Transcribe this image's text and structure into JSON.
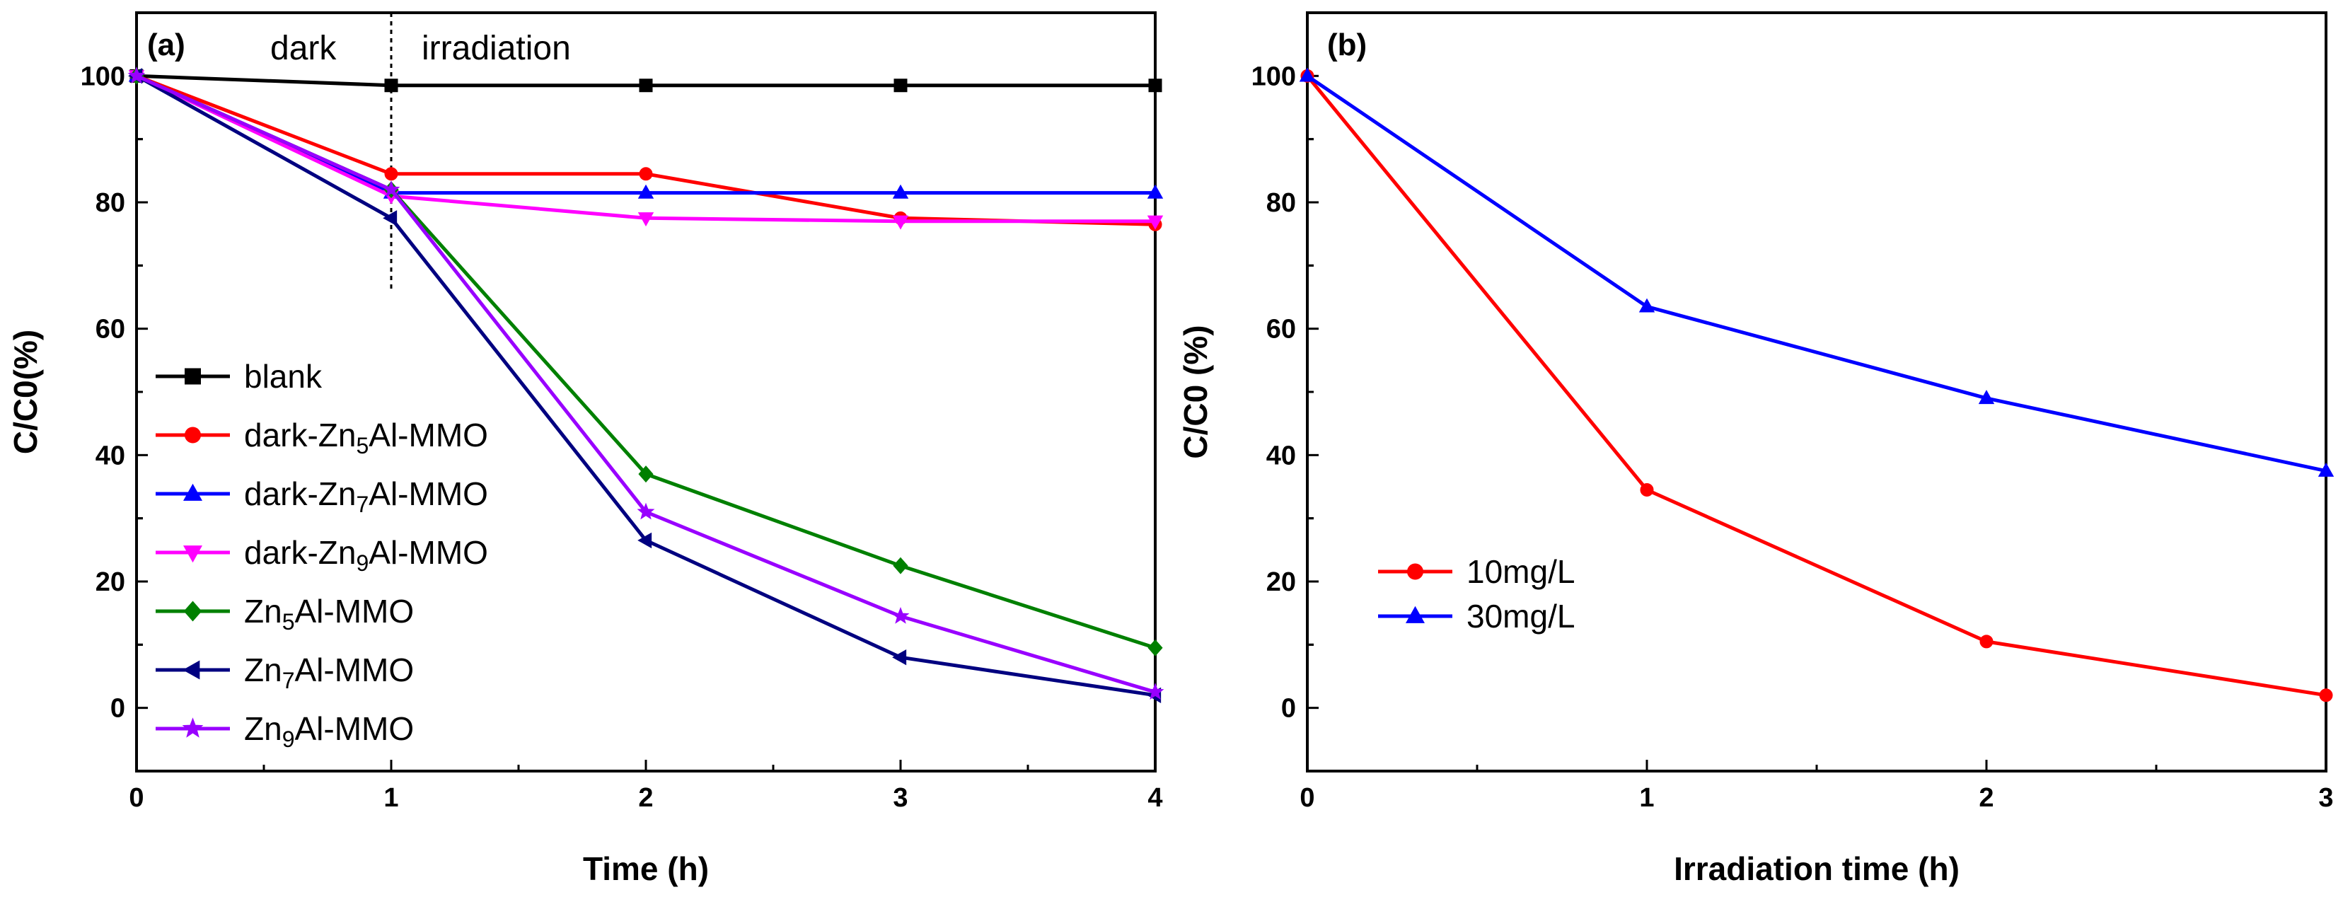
{
  "chart_data": [
    {
      "panel": "(a)",
      "type": "line",
      "xlabel": "Time (h)",
      "ylabel": "C/C0(%)",
      "xlim": [
        0,
        4
      ],
      "ylim": [
        -10,
        110
      ],
      "xticks": [
        0,
        1,
        2,
        3,
        4
      ],
      "xtick_labels": [
        "0",
        "1",
        "2",
        "3",
        "4"
      ],
      "yticks": [
        0,
        20,
        40,
        60,
        80,
        100
      ],
      "ytick_labels": [
        "0",
        "20",
        "40",
        "60",
        "80",
        "100"
      ],
      "annotations": [
        "dark",
        "irradiation"
      ],
      "divider_x": 1,
      "series": [
        {
          "name": "blank",
          "label_parts": [
            [
              "blank",
              false
            ]
          ],
          "color": "#000000",
          "marker": "square",
          "x": [
            0,
            1,
            2,
            3,
            4
          ],
          "values": [
            100,
            98.5,
            98.5,
            98.5,
            98.5
          ]
        },
        {
          "name": "dark-Zn5Al-MMO",
          "label_parts": [
            [
              "dark-Zn",
              false
            ],
            [
              "5",
              true
            ],
            [
              "Al-MMO",
              false
            ]
          ],
          "color": "#ff0000",
          "marker": "circle",
          "x": [
            0,
            1,
            2,
            3,
            4
          ],
          "values": [
            100,
            84.5,
            84.5,
            77.5,
            76.5
          ]
        },
        {
          "name": "dark-Zn7Al-MMO",
          "label_parts": [
            [
              "dark-Zn",
              false
            ],
            [
              "7",
              true
            ],
            [
              "Al-MMO",
              false
            ]
          ],
          "color": "#0000ff",
          "marker": "triangle-up",
          "x": [
            0,
            1,
            2,
            3,
            4
          ],
          "values": [
            100,
            81.5,
            81.5,
            81.5,
            81.5
          ]
        },
        {
          "name": "dark-Zn9Al-MMO",
          "label_parts": [
            [
              "dark-Zn",
              false
            ],
            [
              "9",
              true
            ],
            [
              "Al-MMO",
              false
            ]
          ],
          "color": "#ff00ff",
          "marker": "triangle-down",
          "x": [
            0,
            1,
            2,
            3,
            4
          ],
          "values": [
            100,
            81,
            77.5,
            77,
            77
          ]
        },
        {
          "name": "Zn5Al-MMO",
          "label_parts": [
            [
              "Zn",
              false
            ],
            [
              "5",
              true
            ],
            [
              "Al-MMO",
              false
            ]
          ],
          "color": "#008000",
          "marker": "diamond",
          "x": [
            0,
            1,
            2,
            3,
            4
          ],
          "values": [
            100,
            82,
            37,
            22.5,
            9.5
          ]
        },
        {
          "name": "Zn7Al-MMO",
          "label_parts": [
            [
              "Zn",
              false
            ],
            [
              "7",
              true
            ],
            [
              "Al-MMO",
              false
            ]
          ],
          "color": "#000080",
          "marker": "triangle-left",
          "x": [
            0,
            1,
            2,
            3,
            4
          ],
          "values": [
            100,
            77.5,
            26.5,
            8,
            2
          ]
        },
        {
          "name": "Zn9Al-MMO",
          "label_parts": [
            [
              "Zn",
              false
            ],
            [
              "9",
              true
            ],
            [
              "Al-MMO",
              false
            ]
          ],
          "color": "#9900ff",
          "marker": "star",
          "x": [
            0,
            1,
            2,
            3,
            4
          ],
          "values": [
            100,
            82,
            31,
            14.5,
            2.5
          ]
        }
      ]
    },
    {
      "panel": "(b)",
      "type": "line",
      "xlabel": "Irradiation time (h)",
      "ylabel": "C/C0 (%)",
      "xlim": [
        0,
        3
      ],
      "ylim": [
        -10,
        110
      ],
      "xticks": [
        0,
        1,
        2,
        3
      ],
      "xtick_labels": [
        "0",
        "1",
        "2",
        "3"
      ],
      "yticks": [
        0,
        20,
        40,
        60,
        80,
        100
      ],
      "ytick_labels": [
        "0",
        "20",
        "40",
        "60",
        "80",
        "100"
      ],
      "series": [
        {
          "name": "10mg/L",
          "label_parts": [
            [
              "10mg/L",
              false
            ]
          ],
          "color": "#ff0000",
          "marker": "circle",
          "x": [
            0,
            1,
            2,
            3
          ],
          "values": [
            100,
            34.5,
            10.5,
            2
          ]
        },
        {
          "name": "30mg/L",
          "label_parts": [
            [
              "30mg/L",
              false
            ]
          ],
          "color": "#0000ff",
          "marker": "triangle-up",
          "x": [
            0,
            1,
            2,
            3
          ],
          "values": [
            100,
            63.5,
            49,
            37.5
          ]
        }
      ]
    }
  ]
}
